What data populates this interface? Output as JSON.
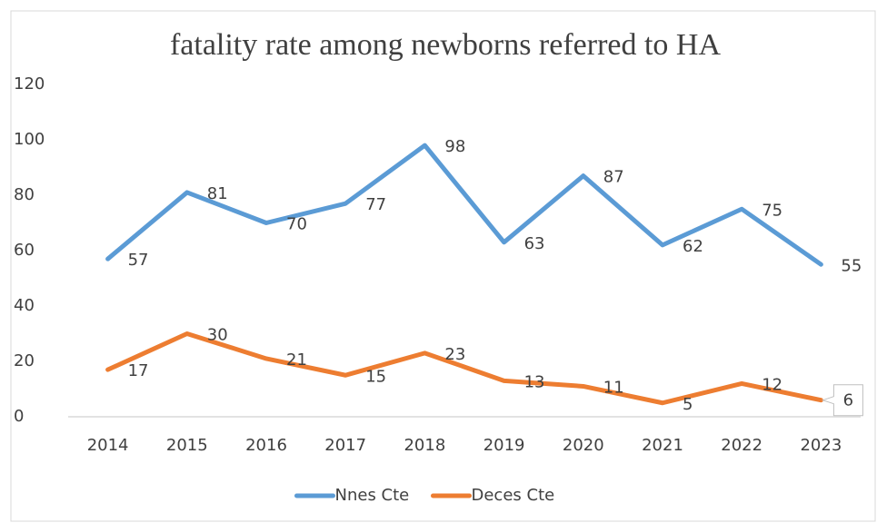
{
  "chart_data": {
    "type": "line",
    "title": "fatality rate among newborns referred to HA",
    "categories": [
      "2014",
      "2015",
      "2016",
      "2017",
      "2018",
      "2019",
      "2020",
      "2021",
      "2022",
      "2023"
    ],
    "series": [
      {
        "name": "Nnes Cte",
        "color": "#5b9bd5",
        "values": [
          57,
          81,
          70,
          77,
          98,
          63,
          87,
          62,
          75,
          55
        ]
      },
      {
        "name": "Deces Cte",
        "color": "#ed7d31",
        "values": [
          17,
          30,
          21,
          15,
          23,
          13,
          11,
          5,
          12,
          6
        ]
      }
    ],
    "ylim": [
      0,
      120
    ],
    "yticks": [
      0,
      20,
      40,
      60,
      80,
      100,
      120
    ],
    "grid": false,
    "legend": "bottom"
  }
}
